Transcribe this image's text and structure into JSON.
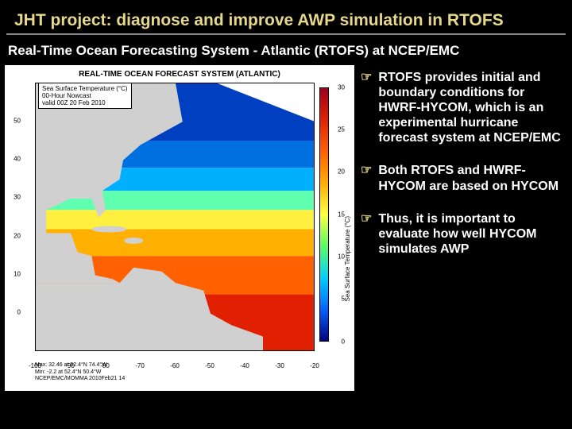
{
  "title": "JHT project: diagnose and improve AWP simulation in RTOFS",
  "subtitle": "Real-Time Ocean Forecasting System - Atlantic (RTOFS) at NCEP/EMC",
  "bullets": [
    "RTOFS provides initial and boundary conditions for HWRF-HYCOM, which is an experimental hurricane forecast system at NCEP/EMC",
    "Both RTOFS and HWRF-HYCOM are based on HYCOM",
    "Thus, it is important to evaluate how well HYCOM simulates AWP"
  ],
  "figure": {
    "header": "REAL-TIME OCEAN FORECAST SYSTEM (ATLANTIC)",
    "info_lines": [
      "Sea Surface Temperature (°C)",
      "00-Hour Nowcast",
      "valid 00Z 20 Feb 2010"
    ],
    "footer_lines": [
      "Max: 32.46 at 52.4°N 74.4°W",
      "Min: -2.2 at 52.4°N 50.4°W",
      "NCEP/EMC/MOMMA 2010Feb21 14"
    ],
    "ylim": [
      -10,
      60
    ],
    "xlim": [
      -100,
      -20
    ],
    "y_ticks": [
      50,
      40,
      30,
      20,
      10,
      0
    ],
    "x_ticks": [
      -100,
      -90,
      -80,
      -70,
      -60,
      -50,
      -40,
      -30,
      -20
    ],
    "colorbar": {
      "range": [
        0,
        30
      ],
      "ticks": [
        30,
        25,
        20,
        15,
        10,
        5,
        0
      ],
      "label": "Sea Surface Temperature (°C)",
      "gradient_stops": [
        {
          "p": 0,
          "c": "#a00020"
        },
        {
          "p": 12,
          "c": "#e02000"
        },
        {
          "p": 25,
          "c": "#ff6000"
        },
        {
          "p": 38,
          "c": "#ffb000"
        },
        {
          "p": 50,
          "c": "#ffff40"
        },
        {
          "p": 62,
          "c": "#60ff60"
        },
        {
          "p": 75,
          "c": "#00d0ff"
        },
        {
          "p": 88,
          "c": "#0060ff"
        },
        {
          "p": 100,
          "c": "#000080"
        }
      ]
    },
    "background_color": "#ffffff",
    "land_color": "#d0d0d0",
    "map_sst_regions": [
      {
        "lat_top": 60,
        "lat_bot": 45,
        "color": "#0040c0"
      },
      {
        "lat_top": 45,
        "lat_bot": 38,
        "color": "#0070e0"
      },
      {
        "lat_top": 38,
        "lat_bot": 32,
        "color": "#00b0ff"
      },
      {
        "lat_top": 32,
        "lat_bot": 27,
        "color": "#60ffb0"
      },
      {
        "lat_top": 27,
        "lat_bot": 22,
        "color": "#fff040"
      },
      {
        "lat_top": 22,
        "lat_bot": 15,
        "color": "#ffb000"
      },
      {
        "lat_top": 15,
        "lat_bot": 5,
        "color": "#ff6000"
      },
      {
        "lat_top": 5,
        "lat_bot": -10,
        "color": "#e02000"
      }
    ]
  }
}
